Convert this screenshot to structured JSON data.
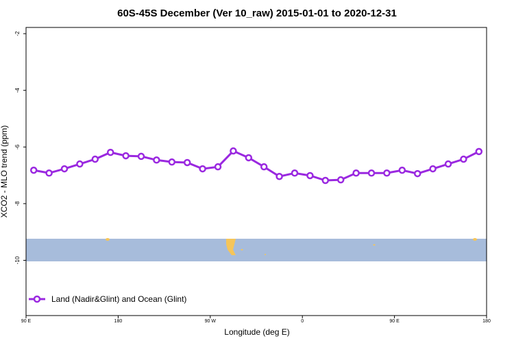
{
  "chart_data": {
    "type": "line",
    "title": "60S-45S December (Ver 10_raw)   2015-01-01 to 2020-12-31",
    "x_label": "Longitude (deg E)",
    "y_label": "XCO2 - MLO trend (ppm)",
    "x": [
      97.5,
      112.5,
      127.5,
      142.5,
      157.5,
      172.5,
      187.5,
      202.5,
      217.5,
      232.5,
      247.5,
      262.5,
      277.5,
      292.5,
      307.5,
      322.5,
      337.5,
      352.5,
      367.5,
      382.5,
      397.5,
      412.5,
      427.5,
      442.5,
      457.5,
      472.5,
      487.5,
      502.5,
      517.5,
      532.5
    ],
    "series": [
      {
        "name": "Land (Nadir&Glint) and Ocean (Glint)",
        "color": "#9a28e0",
        "values": [
          -6.82,
          -6.92,
          -6.77,
          -6.6,
          -6.43,
          -6.19,
          -6.31,
          -6.33,
          -6.46,
          -6.53,
          -6.55,
          -6.77,
          -6.7,
          -6.14,
          -6.38,
          -6.7,
          -7.04,
          -6.92,
          -7.01,
          -7.18,
          -7.16,
          -6.92,
          -6.92,
          -6.92,
          -6.82,
          -6.94,
          -6.77,
          -6.6,
          -6.43,
          -6.16
        ]
      }
    ],
    "xlim": [
      90,
      540
    ],
    "xticks": [
      {
        "value": 90,
        "label": "90 E"
      },
      180,
      {
        "value": 270,
        "label": "90 W"
      },
      {
        "value": 360,
        "label": "0"
      },
      {
        "value": 450,
        "label": "90 E"
      },
      {
        "value": 540,
        "label": "180"
      }
    ],
    "ylim": [
      -11.95,
      -1.78
    ],
    "yticks": [
      -2,
      -4,
      -6,
      -8,
      -10
    ],
    "legend": "bottom-left"
  }
}
